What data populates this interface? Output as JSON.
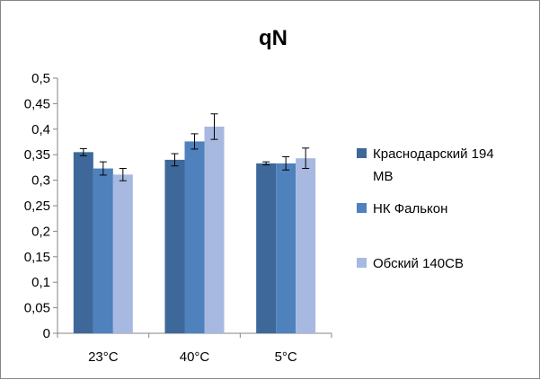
{
  "chart_data": {
    "type": "bar",
    "title": "qN",
    "categories": [
      "23°C",
      "40°C",
      "5°C"
    ],
    "series": [
      {
        "name": "Краснодарский 194 МВ",
        "color": "#3D6899",
        "values": [
          0.355,
          0.34,
          0.333
        ],
        "errors": [
          0.007,
          0.012,
          0.003
        ]
      },
      {
        "name": "НК Фалькон",
        "color": "#4F81BD",
        "values": [
          0.323,
          0.376,
          0.333
        ],
        "errors": [
          0.013,
          0.015,
          0.013
        ]
      },
      {
        "name": "Обский 140СВ",
        "color": "#A7B9E0",
        "values": [
          0.311,
          0.405,
          0.343
        ],
        "errors": [
          0.012,
          0.025,
          0.02
        ]
      }
    ],
    "legend_lines": [
      [
        "Краснодарский 194",
        "МВ"
      ],
      [
        "НК Фалькон"
      ],
      [
        "Обский 140СВ"
      ]
    ],
    "yticks": [
      "0",
      "0,05",
      "0,1",
      "0,15",
      "0,2",
      "0,25",
      "0,3",
      "0,35",
      "0,4",
      "0,45",
      "0,5"
    ],
    "ylim": [
      0,
      0.5
    ],
    "grid": false,
    "legend_position": "right"
  }
}
